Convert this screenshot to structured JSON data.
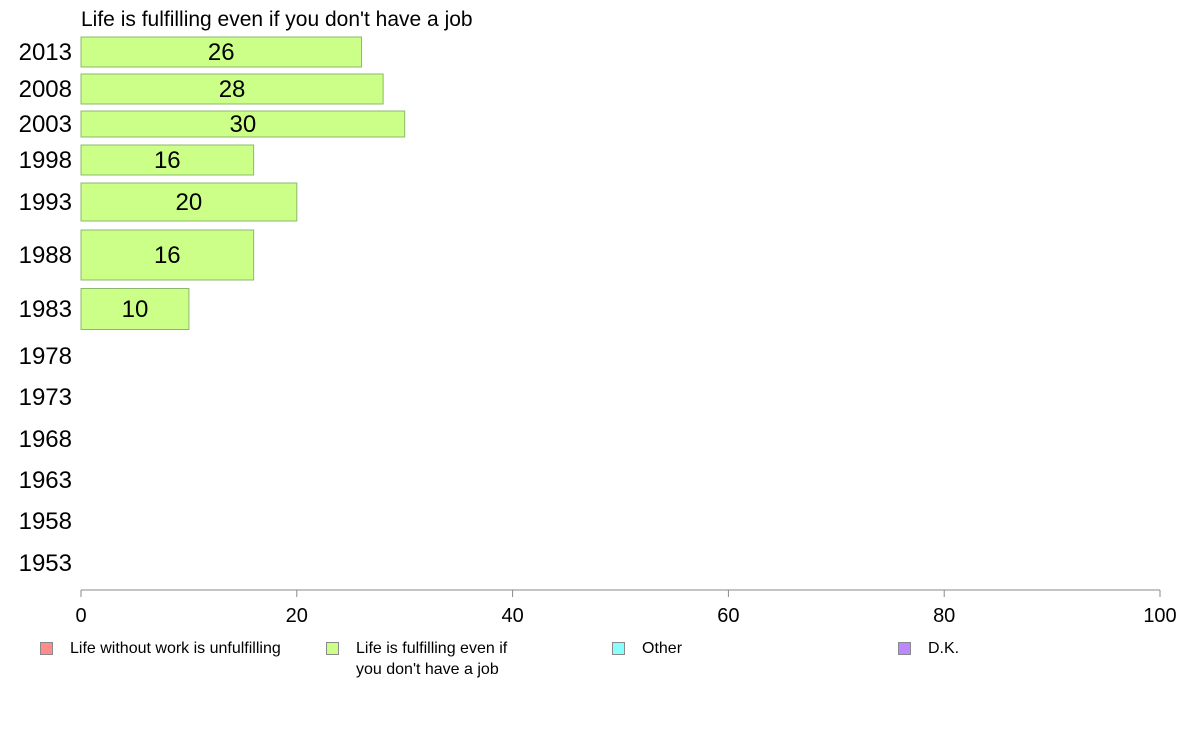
{
  "chart_data": {
    "type": "bar",
    "orientation": "horizontal",
    "title": "Life is fulfilling even if you don't have a job",
    "categories": [
      "2013",
      "2008",
      "2003",
      "1998",
      "1993",
      "1988",
      "1983",
      "1978",
      "1973",
      "1968",
      "1963",
      "1958",
      "1953"
    ],
    "series": [
      {
        "name": "Life is fulfilling even if you don't have a job",
        "color": "#ccff88",
        "values": [
          26,
          28,
          30,
          16,
          20,
          16,
          10,
          null,
          null,
          null,
          null,
          null,
          null
        ]
      }
    ],
    "xlim": [
      0,
      100
    ],
    "xticks": [
      "0",
      "20",
      "40",
      "60",
      "80",
      "100"
    ],
    "grid": false,
    "legend_position": "bottom",
    "legend": [
      {
        "label": "Life without work is unfulfilling",
        "color": "#ff8c8c"
      },
      {
        "label": "Life is fulfilling even if\nyou don't have a job",
        "color": "#ccff88"
      },
      {
        "label": "Other",
        "color": "#88ffff"
      },
      {
        "label": "D.K.",
        "color": "#bb88ff"
      }
    ]
  }
}
